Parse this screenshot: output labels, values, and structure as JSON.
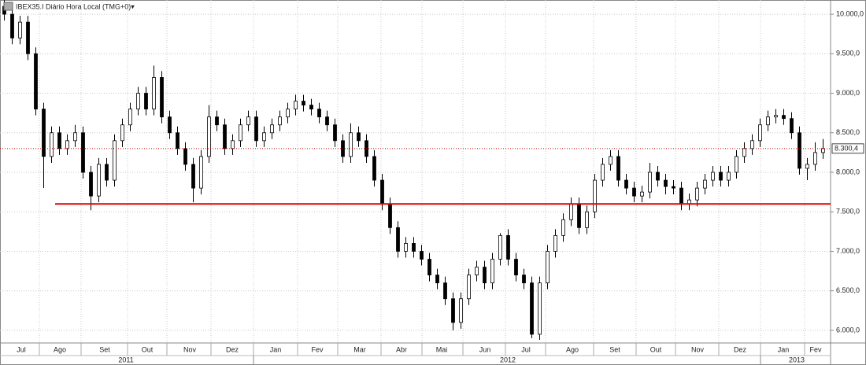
{
  "chart_data": {
    "type": "candlestick",
    "title": "IBEX35.I Diário Hora Local (TMG+0)▾",
    "up_color": "#ffffff",
    "down_color": "#000000",
    "series": [
      {
        "values": [
          [
            10100,
            10180,
            9920,
            10000
          ],
          [
            10000,
            10080,
            9620,
            9700
          ],
          [
            9700,
            9980,
            9620,
            9900
          ],
          [
            9900,
            9980,
            9420,
            9500
          ],
          [
            9500,
            9580,
            8720,
            8800
          ],
          [
            8800,
            8880,
            7800,
            8200
          ],
          [
            8200,
            8580,
            8120,
            8500
          ],
          [
            8500,
            8580,
            8220,
            8300
          ],
          [
            8300,
            8480,
            8220,
            8400
          ],
          [
            8400,
            8600,
            8320,
            8500
          ],
          [
            8500,
            8580,
            7920,
            8000
          ],
          [
            8000,
            8080,
            7520,
            7700
          ],
          [
            7700,
            8180,
            7620,
            8100
          ],
          [
            8100,
            8180,
            7820,
            7900
          ],
          [
            7900,
            8480,
            7820,
            8400
          ],
          [
            8400,
            8680,
            8320,
            8600
          ],
          [
            8600,
            8880,
            8520,
            8800
          ],
          [
            8800,
            9080,
            8720,
            9000
          ],
          [
            9000,
            9080,
            8720,
            8800
          ],
          [
            8800,
            9350,
            8720,
            9200
          ],
          [
            9200,
            9280,
            8620,
            8700
          ],
          [
            8700,
            8780,
            8420,
            8500
          ],
          [
            8500,
            8580,
            8220,
            8300
          ],
          [
            8300,
            8380,
            8020,
            8100
          ],
          [
            8100,
            8180,
            7620,
            7800
          ],
          [
            7800,
            8280,
            7720,
            8200
          ],
          [
            8200,
            8850,
            8120,
            8700
          ],
          [
            8700,
            8780,
            8520,
            8600
          ],
          [
            8600,
            8680,
            8220,
            8300
          ],
          [
            8300,
            8480,
            8220,
            8400
          ],
          [
            8400,
            8680,
            8320,
            8600
          ],
          [
            8600,
            8780,
            8520,
            8700
          ],
          [
            8700,
            8780,
            8320,
            8400
          ],
          [
            8400,
            8580,
            8320,
            8500
          ],
          [
            8500,
            8680,
            8420,
            8600
          ],
          [
            8600,
            8780,
            8520,
            8700
          ],
          [
            8700,
            8880,
            8620,
            8800
          ],
          [
            8800,
            8980,
            8720,
            8900
          ],
          [
            8900,
            8980,
            8770,
            8850
          ],
          [
            8850,
            8930,
            8720,
            8800
          ],
          [
            8800,
            8880,
            8620,
            8700
          ],
          [
            8700,
            8780,
            8520,
            8600
          ],
          [
            8600,
            8680,
            8320,
            8400
          ],
          [
            8400,
            8480,
            8120,
            8200
          ],
          [
            8200,
            8620,
            8120,
            8500
          ],
          [
            8500,
            8580,
            8320,
            8400
          ],
          [
            8400,
            8480,
            8120,
            8200
          ],
          [
            8200,
            8280,
            7820,
            7900
          ],
          [
            7900,
            7980,
            7520,
            7600
          ],
          [
            7600,
            7680,
            7220,
            7300
          ],
          [
            7300,
            7380,
            6920,
            7000
          ],
          [
            7000,
            7180,
            6920,
            7100
          ],
          [
            7100,
            7180,
            6920,
            7000
          ],
          [
            7000,
            7080,
            6820,
            6900
          ],
          [
            6900,
            6980,
            6620,
            6700
          ],
          [
            6700,
            6780,
            6520,
            6600
          ],
          [
            6600,
            6680,
            6320,
            6400
          ],
          [
            6400,
            6480,
            6000,
            6100
          ],
          [
            6100,
            6480,
            6020,
            6400
          ],
          [
            6400,
            6780,
            6320,
            6700
          ],
          [
            6700,
            6880,
            6620,
            6800
          ],
          [
            6800,
            6880,
            6520,
            6600
          ],
          [
            6600,
            6980,
            6520,
            6900
          ],
          [
            6900,
            7230,
            6820,
            7200
          ],
          [
            7200,
            7280,
            6820,
            6900
          ],
          [
            6900,
            6980,
            6620,
            6700
          ],
          [
            6700,
            6780,
            6520,
            6600
          ],
          [
            6600,
            6680,
            5900,
            5950
          ],
          [
            5950,
            6680,
            5880,
            6600
          ],
          [
            6600,
            7080,
            6520,
            7000
          ],
          [
            7000,
            7280,
            6920,
            7200
          ],
          [
            7200,
            7480,
            7120,
            7400
          ],
          [
            7400,
            7680,
            7320,
            7600
          ],
          [
            7600,
            7680,
            7220,
            7300
          ],
          [
            7300,
            7580,
            7220,
            7500
          ],
          [
            7500,
            7980,
            7420,
            7900
          ],
          [
            7900,
            8180,
            7820,
            8100
          ],
          [
            8100,
            8280,
            8020,
            8200
          ],
          [
            8200,
            8280,
            7820,
            7900
          ],
          [
            7900,
            7980,
            7720,
            7800
          ],
          [
            7800,
            7880,
            7620,
            7700
          ],
          [
            7700,
            7830,
            7620,
            7750
          ],
          [
            7750,
            8120,
            7670,
            8000
          ],
          [
            8000,
            8080,
            7820,
            7900
          ],
          [
            7900,
            7980,
            7720,
            7820
          ],
          [
            7820,
            7900,
            7720,
            7800
          ],
          [
            7800,
            7880,
            7520,
            7600
          ],
          [
            7600,
            7730,
            7520,
            7650
          ],
          [
            7650,
            7880,
            7570,
            7800
          ],
          [
            7800,
            7980,
            7720,
            7900
          ],
          [
            7900,
            8080,
            7820,
            8000
          ],
          [
            8000,
            8080,
            7820,
            7900
          ],
          [
            7900,
            8080,
            7820,
            8000
          ],
          [
            8000,
            8280,
            7920,
            8200
          ],
          [
            8200,
            8380,
            8120,
            8300
          ],
          [
            8300,
            8480,
            8220,
            8400
          ],
          [
            8400,
            8680,
            8320,
            8600
          ],
          [
            8600,
            8780,
            8520,
            8700
          ],
          [
            8700,
            8800,
            8620,
            8720
          ],
          [
            8720,
            8800,
            8600,
            8680
          ],
          [
            8680,
            8760,
            8420,
            8500
          ],
          [
            8500,
            8580,
            7970,
            8050
          ],
          [
            8050,
            8180,
            7900,
            8100
          ],
          [
            8100,
            8380,
            8020,
            8250
          ],
          [
            8250,
            8420,
            8170,
            8300.4
          ]
        ]
      }
    ],
    "xlim": [
      -0.5,
      105
    ],
    "ylim": [
      5840,
      10180
    ],
    "yticks": [
      {
        "value": 6000,
        "label": "6.000,0"
      },
      {
        "value": 6500,
        "label": "6.500,0"
      },
      {
        "value": 7000,
        "label": "7.000,0"
      },
      {
        "value": 7500,
        "label": "7.500,0"
      },
      {
        "value": 8000,
        "label": "8.000,0"
      },
      {
        "value": 8500,
        "label": "8.500,0"
      },
      {
        "value": 9000,
        "label": "9.000,0"
      },
      {
        "value": 9500,
        "label": "9.500,0"
      },
      {
        "value": 10000,
        "label": "10.000,0"
      }
    ],
    "xticks": [
      {
        "value": 2.2,
        "label": "Jul"
      },
      {
        "value": 7.1,
        "label": "Ago"
      },
      {
        "value": 12.8,
        "label": "Set"
      },
      {
        "value": 18.2,
        "label": "Out"
      },
      {
        "value": 23.6,
        "label": "Nov"
      },
      {
        "value": 29,
        "label": "Dez"
      },
      {
        "value": 34.5,
        "label": "Jan"
      },
      {
        "value": 39.8,
        "label": "Fev"
      },
      {
        "value": 45.2,
        "label": "Mar"
      },
      {
        "value": 50.5,
        "label": "Abr"
      },
      {
        "value": 55.6,
        "label": "Mai"
      },
      {
        "value": 61.1,
        "label": "Jun"
      },
      {
        "value": 66.3,
        "label": "Jul"
      },
      {
        "value": 72.2,
        "label": "Ago"
      },
      {
        "value": 77.6,
        "label": "Set"
      },
      {
        "value": 82.8,
        "label": "Out"
      },
      {
        "value": 88.1,
        "label": "Nov"
      },
      {
        "value": 93.5,
        "label": "Dez"
      },
      {
        "value": 99,
        "label": "Jan"
      },
      {
        "value": 103.1,
        "label": "Fev"
      }
    ],
    "xgrid": [
      4.5,
      9.8,
      15.7,
      20.7,
      26.3,
      31.7,
      37.3,
      42.4,
      47.9,
      53.1,
      58.3,
      63.7,
      68.8,
      74.9,
      80.3,
      85.3,
      90.8,
      96.1,
      101.7
    ],
    "year_ticks": [
      {
        "value": 15.5,
        "label": "2011"
      },
      {
        "value": 64,
        "label": "2012"
      },
      {
        "value": 100.7,
        "label": "2013"
      }
    ],
    "year_breaks": [
      31.7,
      96.1
    ],
    "support_line": {
      "value": 7600,
      "start": 6.5,
      "color": "#e00000"
    },
    "price_line": {
      "value": 8300.4,
      "label": "8.300,4",
      "color": "#c00000"
    },
    "grid": true
  }
}
